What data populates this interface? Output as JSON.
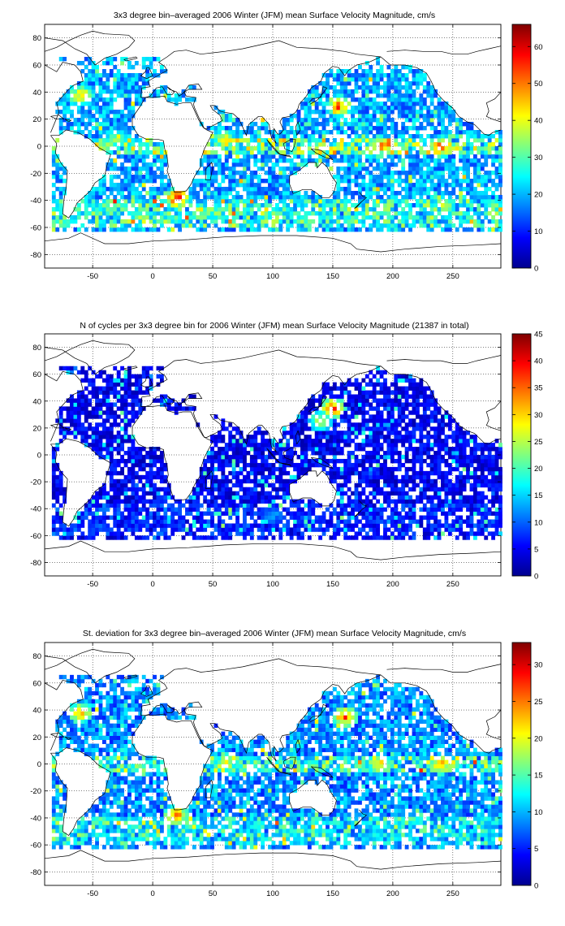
{
  "chart_data": [
    {
      "type": "heatmap",
      "title": "3x3 degree bin–averaged 2006 Winter (JFM) mean Surface Velocity Magnitude, cm/s",
      "xlabel": "",
      "ylabel": "",
      "xlim": [
        -90,
        290
      ],
      "ylim": [
        -90,
        90
      ],
      "x_ticks": [
        -50,
        0,
        50,
        100,
        150,
        200,
        250
      ],
      "y_ticks": [
        80,
        60,
        40,
        20,
        0,
        -20,
        -40,
        -60,
        -80
      ],
      "bin_size_deg": 3,
      "colorbar": {
        "min": 0,
        "max": 66,
        "ticks": [
          0,
          10,
          20,
          30,
          40,
          50,
          60
        ],
        "colormap": "jet"
      },
      "grid": true,
      "hotspots": [
        {
          "x": 155,
          "y": 30,
          "value": 60
        },
        {
          "x": -60,
          "y": 38,
          "value": 50
        },
        {
          "x": 190,
          "y": 0,
          "value": 55
        },
        {
          "x": 240,
          "y": 0,
          "value": 58
        },
        {
          "x": 20,
          "y": -38,
          "value": 62
        },
        {
          "x": 60,
          "y": 5,
          "value": 45
        },
        {
          "x": -30,
          "y": 5,
          "value": 40
        },
        {
          "x": 100,
          "y": -50,
          "value": 35
        }
      ]
    },
    {
      "type": "heatmap",
      "title": "N of cycles per 3x3 degree bin for 2006 Winter (JFM) mean Surface Velocity Magnitude (21387 in total)",
      "xlabel": "",
      "ylabel": "",
      "xlim": [
        -90,
        290
      ],
      "ylim": [
        -90,
        90
      ],
      "x_ticks": [
        -50,
        0,
        50,
        100,
        150,
        200,
        250
      ],
      "y_ticks": [
        80,
        60,
        40,
        20,
        0,
        -20,
        -40,
        -60,
        -80
      ],
      "bin_size_deg": 3,
      "total_cycles": 21387,
      "colorbar": {
        "min": 0,
        "max": 45,
        "ticks": [
          0,
          5,
          10,
          15,
          20,
          25,
          30,
          35,
          40,
          45
        ],
        "colormap": "jet"
      },
      "grid": true,
      "hotspots": [
        {
          "x": 150,
          "y": 35,
          "value": 40
        },
        {
          "x": 140,
          "y": 25,
          "value": 30
        },
        {
          "x": 100,
          "y": -45,
          "value": 15
        },
        {
          "x": 20,
          "y": -40,
          "value": 12
        }
      ]
    },
    {
      "type": "heatmap",
      "title": "St. deviation for 3x3 degree bin–averaged 2006 Winter (JFM) mean Surface Velocity Magnitude, cm/s",
      "xlabel": "",
      "ylabel": "",
      "xlim": [
        -90,
        290
      ],
      "ylim": [
        -90,
        90
      ],
      "x_ticks": [
        -50,
        0,
        50,
        100,
        150,
        200,
        250
      ],
      "y_ticks": [
        80,
        60,
        40,
        20,
        0,
        -20,
        -40,
        -60,
        -80
      ],
      "bin_size_deg": 3,
      "colorbar": {
        "min": 0,
        "max": 33,
        "ticks": [
          0,
          5,
          10,
          15,
          20,
          25,
          30
        ],
        "colormap": "jet"
      },
      "grid": true,
      "hotspots": [
        {
          "x": 160,
          "y": 35,
          "value": 30
        },
        {
          "x": 20,
          "y": -38,
          "value": 28
        },
        {
          "x": 190,
          "y": 0,
          "value": 25
        },
        {
          "x": 240,
          "y": 0,
          "value": 27
        },
        {
          "x": 60,
          "y": 0,
          "value": 24
        },
        {
          "x": -60,
          "y": 38,
          "value": 26
        }
      ]
    }
  ],
  "land_outlines": [
    [
      [
        -85,
        10
      ],
      [
        -78,
        25
      ],
      [
        -80,
        32
      ],
      [
        -70,
        42
      ],
      [
        -66,
        45
      ],
      [
        -58,
        48
      ],
      [
        -60,
        55
      ],
      [
        -65,
        60
      ],
      [
        -75,
        62
      ],
      [
        -80,
        55
      ],
      [
        -90,
        60
      ]
    ],
    [
      [
        -90,
        70
      ],
      [
        -80,
        73
      ],
      [
        -70,
        78
      ],
      [
        -60,
        82
      ],
      [
        -50,
        85
      ],
      [
        -40,
        83
      ],
      [
        -20,
        82
      ],
      [
        -15,
        78
      ],
      [
        -20,
        73
      ],
      [
        -30,
        68
      ],
      [
        -40,
        65
      ],
      [
        -48,
        60
      ],
      [
        -55,
        68
      ],
      [
        -65,
        72
      ],
      [
        -75,
        78
      ],
      [
        -90,
        80
      ]
    ],
    [
      [
        -85,
        8
      ],
      [
        -78,
        8
      ],
      [
        -72,
        12
      ],
      [
        -62,
        10
      ],
      [
        -52,
        5
      ],
      [
        -45,
        -1
      ],
      [
        -35,
        -6
      ],
      [
        -38,
        -14
      ],
      [
        -40,
        -22
      ],
      [
        -48,
        -27
      ],
      [
        -52,
        -33
      ],
      [
        -58,
        -38
      ],
      [
        -63,
        -42
      ],
      [
        -66,
        -48
      ],
      [
        -70,
        -53
      ],
      [
        -75,
        -50
      ],
      [
        -74,
        -40
      ],
      [
        -72,
        -30
      ],
      [
        -71,
        -18
      ],
      [
        -76,
        -13
      ],
      [
        -81,
        -5
      ],
      [
        -80,
        2
      ],
      [
        -85,
        8
      ]
    ],
    [
      [
        -17,
        21
      ],
      [
        -17,
        15
      ],
      [
        -12,
        8
      ],
      [
        -5,
        5
      ],
      [
        5,
        5
      ],
      [
        9,
        4
      ],
      [
        10,
        -2
      ],
      [
        12,
        -8
      ],
      [
        13,
        -15
      ],
      [
        12,
        -18
      ],
      [
        15,
        -26
      ],
      [
        18,
        -34
      ],
      [
        22,
        -34
      ],
      [
        28,
        -33
      ],
      [
        32,
        -28
      ],
      [
        35,
        -22
      ],
      [
        40,
        -15
      ],
      [
        40,
        -10
      ],
      [
        43,
        -2
      ],
      [
        50,
        10
      ],
      [
        45,
        12
      ],
      [
        42,
        14
      ],
      [
        38,
        20
      ],
      [
        34,
        28
      ],
      [
        32,
        32
      ],
      [
        25,
        32
      ],
      [
        20,
        31
      ],
      [
        12,
        33
      ],
      [
        10,
        37
      ],
      [
        0,
        36
      ],
      [
        -6,
        36
      ],
      [
        -10,
        30
      ],
      [
        -17,
        21
      ]
    ],
    [
      [
        -10,
        36
      ],
      [
        -9,
        43
      ],
      [
        -2,
        44
      ],
      [
        -4,
        48
      ],
      [
        2,
        51
      ],
      [
        8,
        54
      ],
      [
        12,
        56
      ],
      [
        10,
        59
      ],
      [
        5,
        62
      ],
      [
        12,
        66
      ],
      [
        18,
        70
      ],
      [
        28,
        71
      ],
      [
        40,
        68
      ],
      [
        50,
        69
      ],
      [
        60,
        70
      ],
      [
        75,
        72
      ],
      [
        90,
        75
      ],
      [
        105,
        78
      ],
      [
        120,
        73
      ],
      [
        140,
        72
      ],
      [
        160,
        70
      ],
      [
        170,
        68
      ],
      [
        180,
        67
      ],
      [
        190,
        66
      ]
    ],
    [
      [
        190,
        66
      ],
      [
        180,
        62
      ],
      [
        170,
        60
      ],
      [
        163,
        56
      ],
      [
        160,
        52
      ],
      [
        155,
        58
      ],
      [
        150,
        59
      ],
      [
        143,
        54
      ],
      [
        140,
        48
      ],
      [
        132,
        43
      ],
      [
        128,
        37
      ],
      [
        126,
        35
      ],
      [
        122,
        31
      ],
      [
        121,
        28
      ],
      [
        119,
        25
      ],
      [
        114,
        22
      ],
      [
        108,
        21
      ],
      [
        106,
        18
      ],
      [
        109,
        12
      ],
      [
        106,
        9
      ],
      [
        104,
        9
      ],
      [
        101,
        13
      ],
      [
        100,
        8
      ],
      [
        103,
        2
      ],
      [
        99,
        6
      ],
      [
        98,
        10
      ],
      [
        97,
        16
      ],
      [
        93,
        20
      ],
      [
        91,
        22
      ],
      [
        88,
        22
      ],
      [
        80,
        16
      ],
      [
        78,
        8
      ],
      [
        77,
        10
      ],
      [
        72,
        20
      ],
      [
        67,
        24
      ],
      [
        60,
        25
      ],
      [
        56,
        26
      ],
      [
        52,
        30
      ],
      [
        48,
        30
      ],
      [
        50,
        27
      ],
      [
        56,
        23
      ],
      [
        58,
        19
      ],
      [
        52,
        16
      ],
      [
        45,
        13
      ],
      [
        43,
        13
      ],
      [
        39,
        20
      ],
      [
        35,
        28
      ],
      [
        34,
        31
      ],
      [
        36,
        36
      ],
      [
        28,
        37
      ],
      [
        26,
        40
      ],
      [
        27,
        41
      ],
      [
        30,
        45
      ],
      [
        38,
        46
      ],
      [
        41,
        42
      ],
      [
        30,
        42
      ],
      [
        28,
        41
      ],
      [
        22,
        37
      ],
      [
        20,
        40
      ],
      [
        14,
        42
      ],
      [
        12,
        44
      ],
      [
        18,
        40
      ],
      [
        16,
        38
      ],
      [
        12,
        38
      ],
      [
        8,
        44
      ],
      [
        3,
        43
      ],
      [
        -2,
        37
      ],
      [
        -6,
        36
      ],
      [
        -10,
        36
      ]
    ],
    [
      [
        114,
        -22
      ],
      [
        122,
        -18
      ],
      [
        130,
        -12
      ],
      [
        136,
        -12
      ],
      [
        137,
        -16
      ],
      [
        141,
        -12
      ],
      [
        145,
        -15
      ],
      [
        149,
        -22
      ],
      [
        153,
        -27
      ],
      [
        151,
        -34
      ],
      [
        147,
        -38
      ],
      [
        141,
        -38
      ],
      [
        137,
        -35
      ],
      [
        132,
        -32
      ],
      [
        125,
        -32
      ],
      [
        117,
        -35
      ],
      [
        114,
        -28
      ],
      [
        114,
        -22
      ]
    ],
    [
      [
        190,
        66
      ],
      [
        198,
        60
      ],
      [
        210,
        60
      ],
      [
        220,
        58
      ],
      [
        228,
        54
      ],
      [
        232,
        48
      ],
      [
        236,
        40
      ],
      [
        242,
        34
      ],
      [
        250,
        28
      ],
      [
        255,
        22
      ],
      [
        262,
        18
      ],
      [
        268,
        16
      ],
      [
        276,
        9
      ],
      [
        280,
        8
      ],
      [
        283,
        10
      ],
      [
        290,
        12
      ]
    ],
    [
      [
        195,
        70
      ],
      [
        210,
        71
      ],
      [
        225,
        70
      ],
      [
        240,
        70
      ],
      [
        250,
        68
      ],
      [
        262,
        68
      ],
      [
        270,
        70
      ],
      [
        280,
        72
      ],
      [
        290,
        74
      ]
    ],
    [
      [
        290,
        18
      ],
      [
        283,
        20
      ],
      [
        278,
        22
      ],
      [
        280,
        26
      ],
      [
        278,
        32
      ],
      [
        285,
        35
      ],
      [
        290,
        40
      ]
    ],
    [
      [
        132,
        -2
      ],
      [
        140,
        -3
      ],
      [
        148,
        -8
      ],
      [
        150,
        -10
      ],
      [
        143,
        -8
      ],
      [
        136,
        -5
      ],
      [
        132,
        -2
      ]
    ],
    [
      [
        95,
        5
      ],
      [
        103,
        -3
      ],
      [
        106,
        -6
      ],
      [
        104,
        -5
      ],
      [
        98,
        1
      ],
      [
        95,
        5
      ]
    ],
    [
      [
        109,
        2
      ],
      [
        115,
        5
      ],
      [
        119,
        5
      ],
      [
        118,
        0
      ],
      [
        116,
        -4
      ],
      [
        110,
        -2
      ],
      [
        109,
        2
      ]
    ],
    [
      [
        106,
        -6
      ],
      [
        115,
        -8
      ],
      [
        114,
        -7
      ],
      [
        106,
        -6
      ]
    ],
    [
      [
        130,
        32
      ],
      [
        133,
        35
      ],
      [
        140,
        36
      ],
      [
        141,
        40
      ],
      [
        142,
        44
      ],
      [
        145,
        43
      ],
      [
        141,
        38
      ],
      [
        137,
        34
      ],
      [
        131,
        31
      ]
    ],
    [
      [
        -10,
        52
      ],
      [
        -6,
        55
      ],
      [
        -5,
        58
      ],
      [
        -3,
        58
      ],
      [
        0,
        52
      ],
      [
        -5,
        50
      ],
      [
        -10,
        52
      ]
    ],
    [
      [
        -24,
        64
      ],
      [
        -14,
        66
      ],
      [
        -13,
        65
      ],
      [
        -22,
        63
      ],
      [
        -24,
        64
      ]
    ],
    [
      [
        44,
        -25
      ],
      [
        48,
        -25
      ],
      [
        50,
        -15
      ],
      [
        49,
        -12
      ],
      [
        44,
        -17
      ],
      [
        44,
        -25
      ]
    ],
    [
      [
        172,
        -34
      ],
      [
        175,
        -37
      ],
      [
        178,
        -38
      ],
      [
        174,
        -41
      ],
      [
        168,
        -46
      ],
      [
        170,
        -45
      ],
      [
        174,
        -41
      ]
    ],
    [
      [
        -90,
        -70
      ],
      [
        -70,
        -68
      ],
      [
        -60,
        -64
      ],
      [
        -40,
        -72
      ],
      [
        -20,
        -72
      ],
      [
        0,
        -70
      ],
      [
        30,
        -69
      ],
      [
        60,
        -67
      ],
      [
        90,
        -66
      ],
      [
        120,
        -66
      ],
      [
        150,
        -68
      ],
      [
        165,
        -72
      ],
      [
        170,
        -76
      ],
      [
        190,
        -78
      ],
      [
        210,
        -76
      ],
      [
        240,
        -74
      ],
      [
        270,
        -73
      ],
      [
        290,
        -72
      ]
    ],
    [
      [
        120,
        8
      ],
      [
        123,
        12
      ],
      [
        121,
        18
      ],
      [
        119,
        14
      ],
      [
        120,
        8
      ]
    ],
    [
      [
        -85,
        22
      ],
      [
        -78,
        23
      ],
      [
        -74,
        20
      ],
      [
        -80,
        20
      ],
      [
        -85,
        22
      ]
    ],
    [
      [
        -70,
        18
      ],
      [
        -68,
        19
      ],
      [
        -73,
        20
      ],
      [
        -70,
        18
      ]
    ]
  ]
}
